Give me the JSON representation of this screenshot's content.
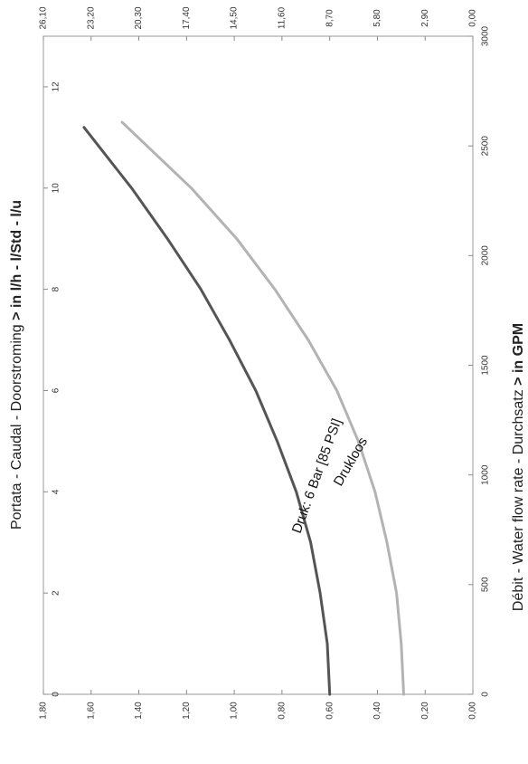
{
  "chart_data": {
    "type": "line",
    "title": "",
    "x_bottom": {
      "label_plain": "Portata - Caudal - Doorstroming ",
      "label_bold": "> in l/h - l/Std - l/u",
      "range": [
        0,
        13
      ],
      "ticks": [
        "0",
        "2",
        "4",
        "6",
        "8",
        "10",
        "12"
      ]
    },
    "y_left": {
      "range": [
        0,
        1.8
      ],
      "ticks": [
        "0,00",
        "0,20",
        "0,40",
        "0,60",
        "0,80",
        "1,00",
        "1,20",
        "1,40",
        "1,60",
        "1,80"
      ]
    },
    "x_top": {
      "label_plain": "Débit - Water flow rate - Durchsatz ",
      "label_bold": "> in GPM",
      "range": [
        0,
        3000
      ],
      "ticks": [
        "0",
        "500",
        "1000",
        "1500",
        "2000",
        "2500",
        "3000"
      ]
    },
    "y_right": {
      "range": [
        0,
        26.1
      ],
      "ticks": [
        "0,00",
        "2,90",
        "5,80",
        "8,70",
        "11,60",
        "14,50",
        "17,40",
        "20,30",
        "23,20",
        "26,10"
      ]
    },
    "series": [
      {
        "name": "Druk: 6 Bar [85 PSI]",
        "color": "#555555",
        "x": [
          0,
          1,
          2,
          3,
          4,
          5,
          6,
          7,
          8,
          9,
          10,
          11.2
        ],
        "y": [
          0.6,
          0.61,
          0.64,
          0.68,
          0.74,
          0.82,
          0.91,
          1.02,
          1.14,
          1.28,
          1.43,
          1.63
        ]
      },
      {
        "name": "Drukloos",
        "color": "#b3b3b3",
        "x": [
          0,
          1,
          2,
          3,
          4,
          5,
          6,
          7,
          8,
          9,
          10,
          11.3
        ],
        "y": [
          0.29,
          0.3,
          0.32,
          0.36,
          0.41,
          0.48,
          0.57,
          0.69,
          0.83,
          0.99,
          1.18,
          1.47
        ]
      }
    ],
    "grid": false
  }
}
